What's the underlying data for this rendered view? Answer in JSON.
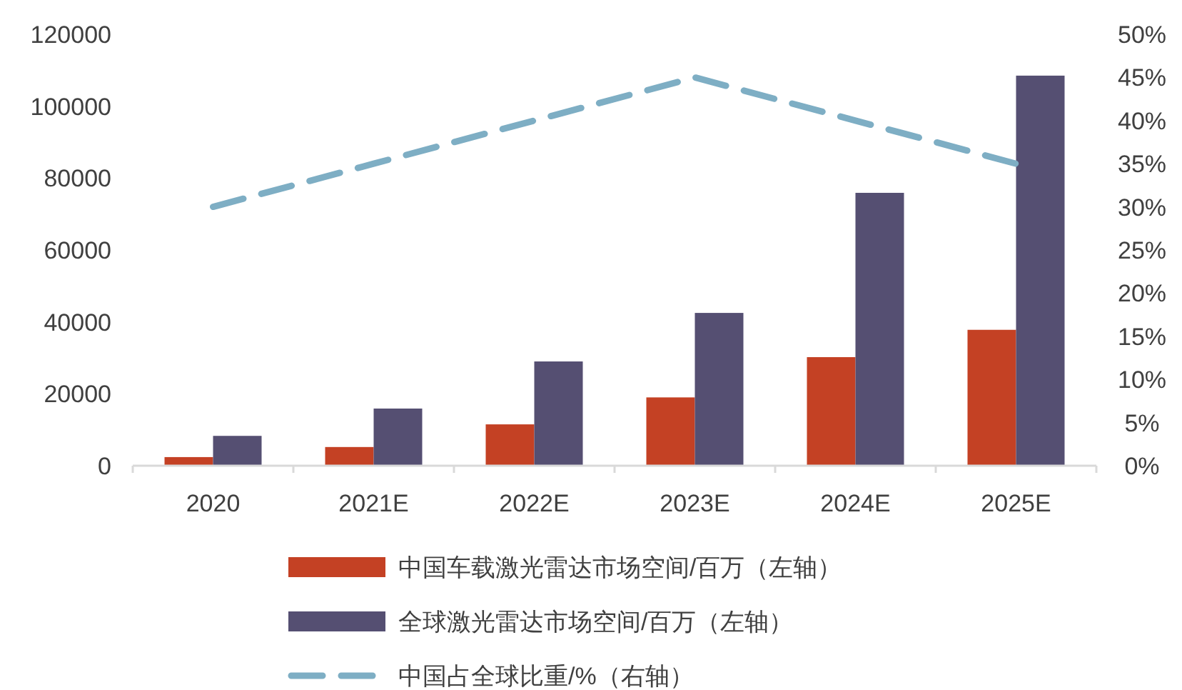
{
  "chart_data": {
    "type": "bar",
    "categories": [
      "2020",
      "2021E",
      "2022E",
      "2023E",
      "2024E",
      "2025E"
    ],
    "series": [
      {
        "name": "中国车载激光雷达市场空间/百万（左轴）",
        "color": "#c44124",
        "values": [
          2400,
          5200,
          11500,
          19000,
          30200,
          37800
        ]
      },
      {
        "name": "全球激光雷达市场空间/百万（左轴）",
        "color": "#554f72",
        "values": [
          8300,
          15900,
          29000,
          42500,
          75900,
          108500
        ]
      },
      {
        "name": "中国占全球比重/%（右轴）",
        "type": "line",
        "axis": "y2",
        "color": "#7eaec4",
        "line_style": "dashed",
        "marker": "none",
        "values": [
          30,
          35,
          40,
          45,
          40,
          35
        ]
      }
    ],
    "ylim": [
      0,
      120000
    ],
    "yticks": [
      0,
      20000,
      40000,
      60000,
      80000,
      100000,
      120000
    ],
    "y2lim": [
      0,
      50
    ],
    "y2ticks": [
      {
        "value": 0,
        "label": "0%"
      },
      {
        "value": 5,
        "label": "5%"
      },
      {
        "value": 10,
        "label": "10%"
      },
      {
        "value": 15,
        "label": "15%"
      },
      {
        "value": 20,
        "label": "20%"
      },
      {
        "value": 25,
        "label": "25%"
      },
      {
        "value": 30,
        "label": "30%"
      },
      {
        "value": 35,
        "label": "35%"
      },
      {
        "value": 40,
        "label": "40%"
      },
      {
        "value": 45,
        "label": "45%"
      },
      {
        "value": 50,
        "label": "50%"
      }
    ],
    "grid": false,
    "legend": "bottom"
  }
}
